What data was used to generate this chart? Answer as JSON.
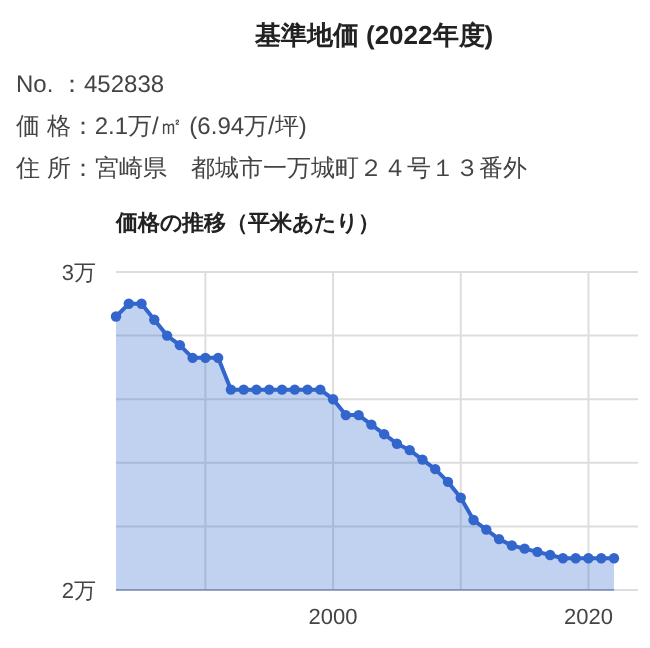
{
  "chart_data": {
    "type": "area",
    "title": "基準地価 (2022年度)",
    "subtitle": "価格の推移（平米あたり）",
    "annotations": [
      "No. ：452838",
      "価 格：2.1万/㎡ (6.94万/坪)",
      "住 所：宮崎県　都城市一万城町２４号１３番外"
    ],
    "x": [
      1983,
      1984,
      1985,
      1986,
      1987,
      1988,
      1989,
      1990,
      1991,
      1992,
      1993,
      1994,
      1995,
      1996,
      1997,
      1998,
      1999,
      2000,
      2001,
      2002,
      2003,
      2004,
      2005,
      2006,
      2007,
      2008,
      2009,
      2010,
      2011,
      2012,
      2013,
      2014,
      2015,
      2016,
      2017,
      2018,
      2019,
      2020,
      2021,
      2022
    ],
    "series": [
      {
        "color": "#3366cc",
        "values": [
          2.86,
          2.9,
          2.9,
          2.85,
          2.8,
          2.77,
          2.73,
          2.73,
          2.73,
          2.63,
          2.63,
          2.63,
          2.63,
          2.63,
          2.63,
          2.63,
          2.63,
          2.6,
          2.55,
          2.55,
          2.52,
          2.49,
          2.46,
          2.44,
          2.41,
          2.38,
          2.34,
          2.29,
          2.22,
          2.19,
          2.16,
          2.14,
          2.13,
          2.12,
          2.11,
          2.1,
          2.1,
          2.1,
          2.1,
          2.1
        ]
      }
    ],
    "xlim": [
      1983,
      2022
    ],
    "xticks": [
      {
        "value": 1990,
        "label": null
      },
      2000,
      {
        "value": 2010,
        "label": null
      },
      2020
    ],
    "ylim": [
      2,
      3
    ],
    "yticks": [
      {
        "value": 2,
        "label": "2万"
      },
      {
        "value": 2.2,
        "label": null
      },
      {
        "value": 2.4,
        "label": null
      },
      {
        "value": 2.6,
        "label": null
      },
      {
        "value": 2.8,
        "label": null
      },
      {
        "value": 3,
        "label": "3万"
      }
    ],
    "grid": true,
    "marker": "circle"
  }
}
